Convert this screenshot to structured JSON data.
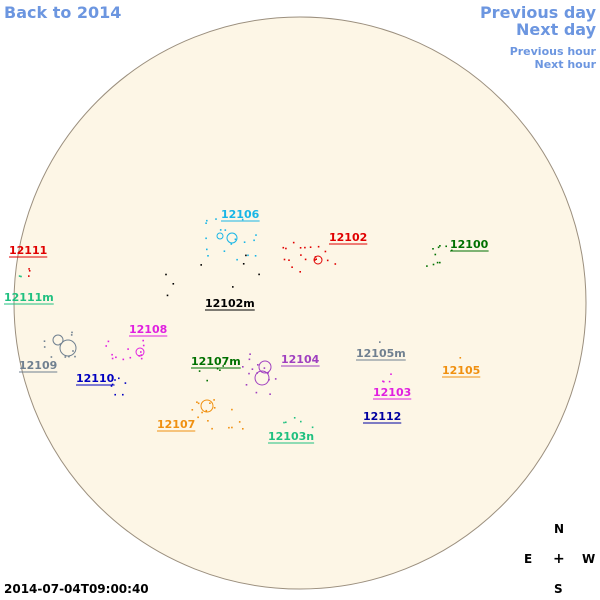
{
  "nav": {
    "back": "Back to 2014",
    "previous_day": "Previous day",
    "next_day": "Next day",
    "previous_hour": "Previous hour",
    "next_hour": "Next hour"
  },
  "timestamp": "2014-07-04T09:00:40",
  "compass": {
    "north": "N",
    "south": "S",
    "east": "E",
    "west": "W",
    "center": "+"
  },
  "colors": {
    "disk_fill": "#fdf6e6",
    "disk_stroke": "#9b8f7e",
    "nav_link": "#6c96e0"
  },
  "regions": [
    {
      "id": "12106",
      "label": "12106",
      "color": "#19b6e6"
    },
    {
      "id": "12102",
      "label": "12102",
      "color": "#e00000"
    },
    {
      "id": "12100",
      "label": "12100",
      "color": "#007000"
    },
    {
      "id": "12111",
      "label": "12111",
      "color": "#e00000"
    },
    {
      "id": "12111m",
      "label": "12111m",
      "color": "#20c080"
    },
    {
      "id": "12102m",
      "label": "12102m",
      "color": "#000000"
    },
    {
      "id": "12108",
      "label": "12108",
      "color": "#e020e0"
    },
    {
      "id": "12109",
      "label": "12109",
      "color": "#708090"
    },
    {
      "id": "12107m",
      "label": "12107m",
      "color": "#007000"
    },
    {
      "id": "12104",
      "label": "12104",
      "color": "#a040c0"
    },
    {
      "id": "12105m",
      "label": "12105m",
      "color": "#708090"
    },
    {
      "id": "12110",
      "label": "12110",
      "color": "#0000c0"
    },
    {
      "id": "12105",
      "label": "12105",
      "color": "#f09010"
    },
    {
      "id": "12103",
      "label": "12103",
      "color": "#e020e0"
    },
    {
      "id": "12112",
      "label": "12112",
      "color": "#0000a0"
    },
    {
      "id": "12107",
      "label": "12107",
      "color": "#f09010"
    },
    {
      "id": "12103n",
      "label": "12103n",
      "color": "#20c080"
    }
  ]
}
